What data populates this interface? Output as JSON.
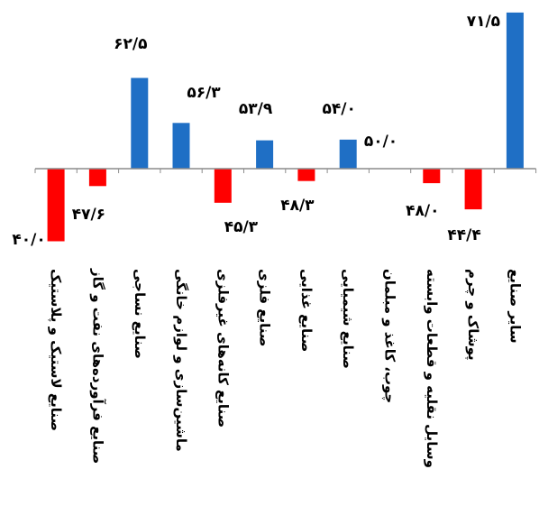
{
  "chart_data": {
    "type": "bar",
    "baseline": 50,
    "categories": [
      "صنایع لاستیک و پلاستیک",
      "صنایع فرآورده‌های نفت و گاز",
      "صنایع نساجی",
      "ماشین‌سازی و لوازم خانگی",
      "صنایع کانه‌های غیرفلزی",
      "صنایع فلزی",
      "صنایع غذایی",
      "صنایع شیمیایی",
      "چوب، کاغذ و مبلمان",
      "وسایل نقلیه و قطعات وابسته",
      "پوشاک و چرم",
      "سایر صنایع"
    ],
    "values": [
      40.0,
      47.6,
      62.5,
      56.3,
      45.3,
      53.9,
      48.3,
      54.0,
      50.0,
      48.0,
      44.4,
      71.5
    ],
    "value_labels": [
      "۴۰/۰",
      "۴۷/۶",
      "۶۲/۵",
      "۵۶/۳",
      "۴۵/۳",
      "۵۳/۹",
      "۴۸/۳",
      "۵۴/۰",
      "۵۰/۰",
      "۴۸/۰",
      "۴۴/۴",
      "۷۱/۵"
    ],
    "colors": {
      "above": "#1f6fc5",
      "below": "#ff0000",
      "axis": "#8c8c8c"
    },
    "grid": false,
    "legend": "none"
  }
}
